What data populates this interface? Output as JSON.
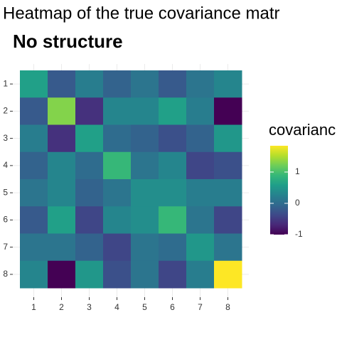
{
  "chart_data": {
    "type": "heatmap",
    "title": "Heatmap of the true covariance matr",
    "subtitle": "No structure",
    "x_categories": [
      "1",
      "2",
      "3",
      "4",
      "5",
      "6",
      "7",
      "8"
    ],
    "y_categories": [
      "1",
      "2",
      "3",
      "4",
      "5",
      "6",
      "7",
      "8"
    ],
    "z": [
      [
        0.6,
        -0.2,
        0.2,
        -0.1,
        0.1,
        -0.2,
        0.1,
        0.3
      ],
      [
        -0.2,
        1.3,
        -0.6,
        0.3,
        0.3,
        0.6,
        0.2,
        -1.0
      ],
      [
        0.2,
        -0.6,
        0.6,
        0.0,
        -0.1,
        -0.3,
        -0.1,
        0.5
      ],
      [
        -0.1,
        0.3,
        0.0,
        0.9,
        0.1,
        0.3,
        -0.4,
        -0.3
      ],
      [
        0.1,
        0.3,
        -0.1,
        0.1,
        0.4,
        0.4,
        0.2,
        0.2
      ],
      [
        -0.2,
        0.6,
        -0.4,
        0.3,
        0.4,
        0.9,
        0.1,
        -0.4
      ],
      [
        0.1,
        0.1,
        -0.1,
        -0.4,
        0.1,
        0.0,
        0.5,
        0.1
      ],
      [
        0.3,
        -1.0,
        0.5,
        -0.3,
        0.1,
        -0.4,
        0.2,
        1.84
      ]
    ],
    "colormap": "viridis",
    "legend_title": "covarianc",
    "clim": [
      -1,
      1.84
    ],
    "cticks": [
      -1,
      0,
      1
    ],
    "grid": true
  }
}
